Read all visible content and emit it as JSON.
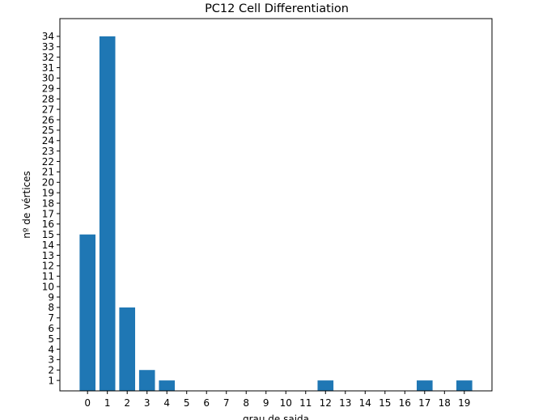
{
  "chart_data": {
    "type": "bar",
    "title": "PC12 Cell Differentiation",
    "xlabel": "grau de saida",
    "ylabel": "nº de vértices",
    "categories": [
      0,
      1,
      2,
      3,
      4,
      5,
      6,
      7,
      8,
      9,
      10,
      11,
      12,
      13,
      14,
      15,
      16,
      17,
      18,
      19
    ],
    "values": [
      15,
      34,
      8,
      2,
      1,
      0,
      0,
      0,
      0,
      0,
      0,
      0,
      1,
      0,
      0,
      0,
      0,
      1,
      0,
      1
    ],
    "yticks": [
      1,
      2,
      3,
      4,
      5,
      6,
      7,
      8,
      9,
      10,
      11,
      12,
      13,
      14,
      15,
      16,
      17,
      18,
      19,
      20,
      21,
      22,
      23,
      24,
      25,
      26,
      27,
      28,
      29,
      30,
      31,
      32,
      33,
      34
    ],
    "xlim": [
      -1.395,
      20.395
    ],
    "ylim": [
      0,
      35.7
    ],
    "grid": false,
    "bar_color": "#1f77b4"
  }
}
